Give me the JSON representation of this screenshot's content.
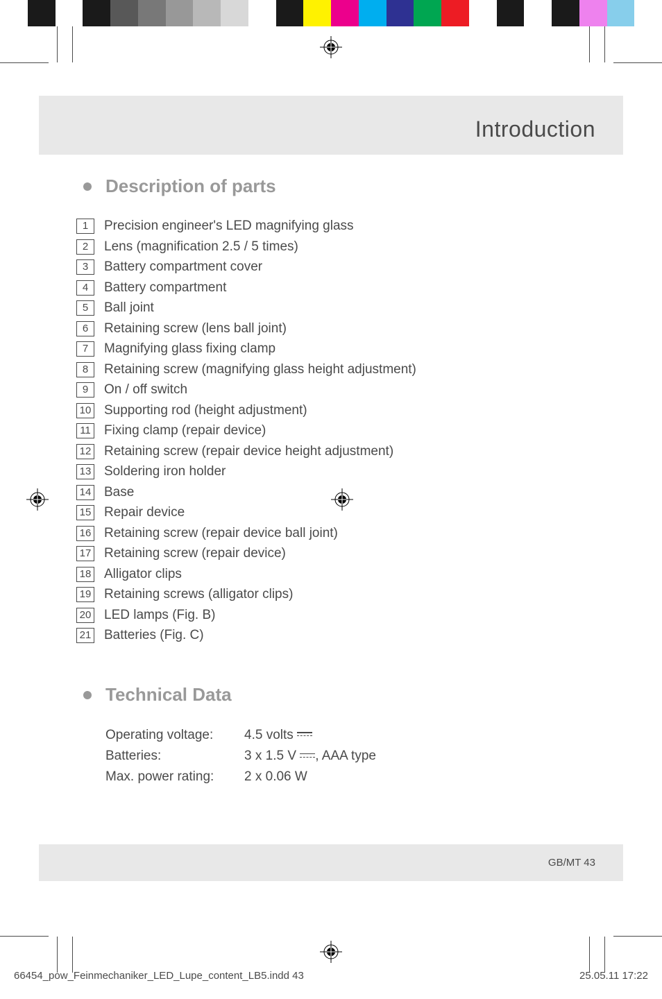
{
  "colorbar": [
    "#ffffff",
    "#1a1a1a",
    "#ffffff",
    "#1a1a1a",
    "#585858",
    "#787878",
    "#989898",
    "#b8b8b8",
    "#d8d8d8",
    "#ffffff",
    "#1a1a1a",
    "#fff200",
    "#ec008c",
    "#00aeef",
    "#2e3192",
    "#00a651",
    "#ed1c24",
    "#ffffff",
    "#1a1a1a",
    "#ffffff",
    "#1a1a1a",
    "#ee82ee",
    "#87ceeb",
    "#ffffff"
  ],
  "header": {
    "title": "Introduction"
  },
  "sections": {
    "parts": {
      "heading": "Description of parts",
      "items": [
        {
          "num": "1",
          "text": "Precision engineer's LED magnifying glass"
        },
        {
          "num": "2",
          "text": "Lens (magnification 2.5 / 5 times)"
        },
        {
          "num": "3",
          "text": "Battery compartment cover"
        },
        {
          "num": "4",
          "text": "Battery compartment"
        },
        {
          "num": "5",
          "text": "Ball joint"
        },
        {
          "num": "6",
          "text": "Retaining screw (lens ball joint)"
        },
        {
          "num": "7",
          "text": "Magnifying glass fixing clamp"
        },
        {
          "num": "8",
          "text": "Retaining screw (magnifying glass height adjustment)"
        },
        {
          "num": "9",
          "text": "On / off switch"
        },
        {
          "num": "10",
          "text": "Supporting rod (height adjustment)"
        },
        {
          "num": "11",
          "text": "Fixing clamp (repair device)"
        },
        {
          "num": "12",
          "text": "Retaining screw (repair device height adjustment)"
        },
        {
          "num": "13",
          "text": "Soldering iron holder"
        },
        {
          "num": "14",
          "text": "Base"
        },
        {
          "num": "15",
          "text": "Repair device"
        },
        {
          "num": "16",
          "text": "Retaining screw (repair device ball joint)"
        },
        {
          "num": "17",
          "text": "Retaining screw (repair device)"
        },
        {
          "num": "18",
          "text": "Alligator clips"
        },
        {
          "num": "19",
          "text": "Retaining screws (alligator clips)"
        },
        {
          "num": "20",
          "text": "LED lamps (Fig. B)"
        },
        {
          "num": "21",
          "text": "Batteries (Fig. C)"
        }
      ]
    },
    "tech": {
      "heading": "Technical Data",
      "rows": [
        {
          "label": "Operating voltage:",
          "value_before": "4.5 volts ",
          "has_dc": true,
          "value_after": ""
        },
        {
          "label": "Batteries:",
          "value_before": "3 x 1.5 V ",
          "has_dc": true,
          "value_after": ", AAA type"
        },
        {
          "label": "Max. power rating:",
          "value_before": "2 x 0.06 W",
          "has_dc": false,
          "value_after": ""
        }
      ]
    }
  },
  "footer": {
    "page_label": "GB/MT   43",
    "file_info": "66454_pow_Feinmechaniker_LED_Lupe_content_LB5.indd   43",
    "timestamp": "25.05.11   17:22"
  }
}
